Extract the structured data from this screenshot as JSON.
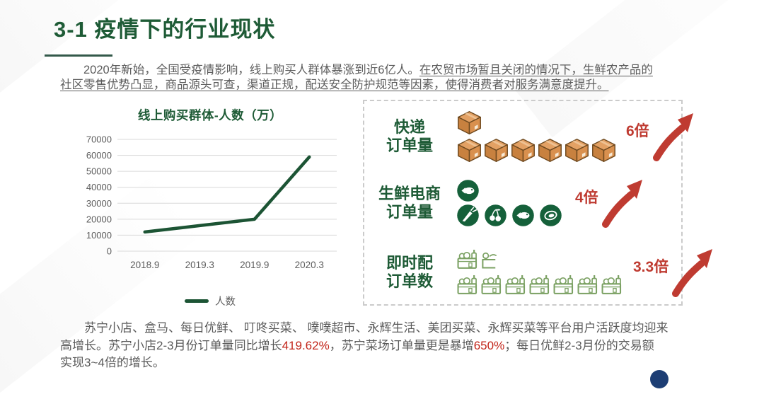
{
  "slide_title": "3-1 疫情下的行业现状",
  "intro": {
    "line1a": "2020年新始，全国受疫情影响，线上购买人群体暴涨到近6亿人。",
    "line1b_underlined": "在农贸市场暂且关闭的情况下，生鲜农产品的",
    "line2_underlined": "社区零售优势凸显，商品源头可查，渠道正规，配送安全防护规范等因素，使得消费者对服务满意度提升。"
  },
  "chart_data": {
    "type": "line",
    "title": "线上购买群体-人数（万）",
    "categories": [
      "2018.9",
      "2019.3",
      "2019.9",
      "2020.3"
    ],
    "series": [
      {
        "name": "人数",
        "values": [
          12000,
          16000,
          20000,
          59000
        ]
      }
    ],
    "xlabel": "",
    "ylabel": "",
    "ylim": [
      0,
      70000
    ],
    "ytick_step": 10000,
    "grid": true,
    "legend_position": "bottom",
    "line_color": "#1c5434",
    "grid_color": "#d9d9d9",
    "tick_color": "#5c5c5c"
  },
  "panel": {
    "rows": [
      {
        "label_line1": "快递",
        "label_line2": "订单量",
        "top_icons": [
          "box"
        ],
        "bottom_icons": [
          "box",
          "box",
          "box",
          "box",
          "box",
          "box"
        ],
        "multiplier": "6倍"
      },
      {
        "label_line1": "生鲜电商",
        "label_line2": "订单量",
        "top_icons": [
          "fish-circle"
        ],
        "bottom_icons": [
          "carrot-circle",
          "cherry-circle",
          "fish-circle",
          "meat-circle"
        ],
        "multiplier": "4倍"
      },
      {
        "label_line1": "即时配",
        "label_line2": "订单数",
        "top_icons": [
          "basket",
          "basket-partial"
        ],
        "bottom_icons": [
          "basket",
          "basket",
          "basket",
          "basket",
          "basket",
          "basket",
          "basket"
        ],
        "multiplier": "3.3倍"
      }
    ]
  },
  "footer": {
    "line1": "苏宁小店、盒马、每日优鲜、 叮咚买菜、 噗噗超市、永辉生活、美团买菜、永辉买菜等平台用户活跃度均迎来",
    "line2a": "高增长。苏宁小店2-3月份订单量同比增长",
    "line2_red1": "419.62%",
    "line2b": "，苏宁菜场订单量更是暴增",
    "line2_red2": "650%",
    "line2c": "；每日优鲜2-3月份的交易额",
    "line3": "实现3~4倍的增长。"
  },
  "colors": {
    "brand_green": "#1e5b36",
    "chart_line_green": "#1c5434",
    "accent_red": "#bf3b31",
    "highlight_red": "#c2251a",
    "box_orange": "#d9904e",
    "basket_green": "#7ba163",
    "body_gray": "#5c5c5c",
    "dash_border_gray": "#cbcbcb",
    "logo_navy": "#1d3e74"
  }
}
